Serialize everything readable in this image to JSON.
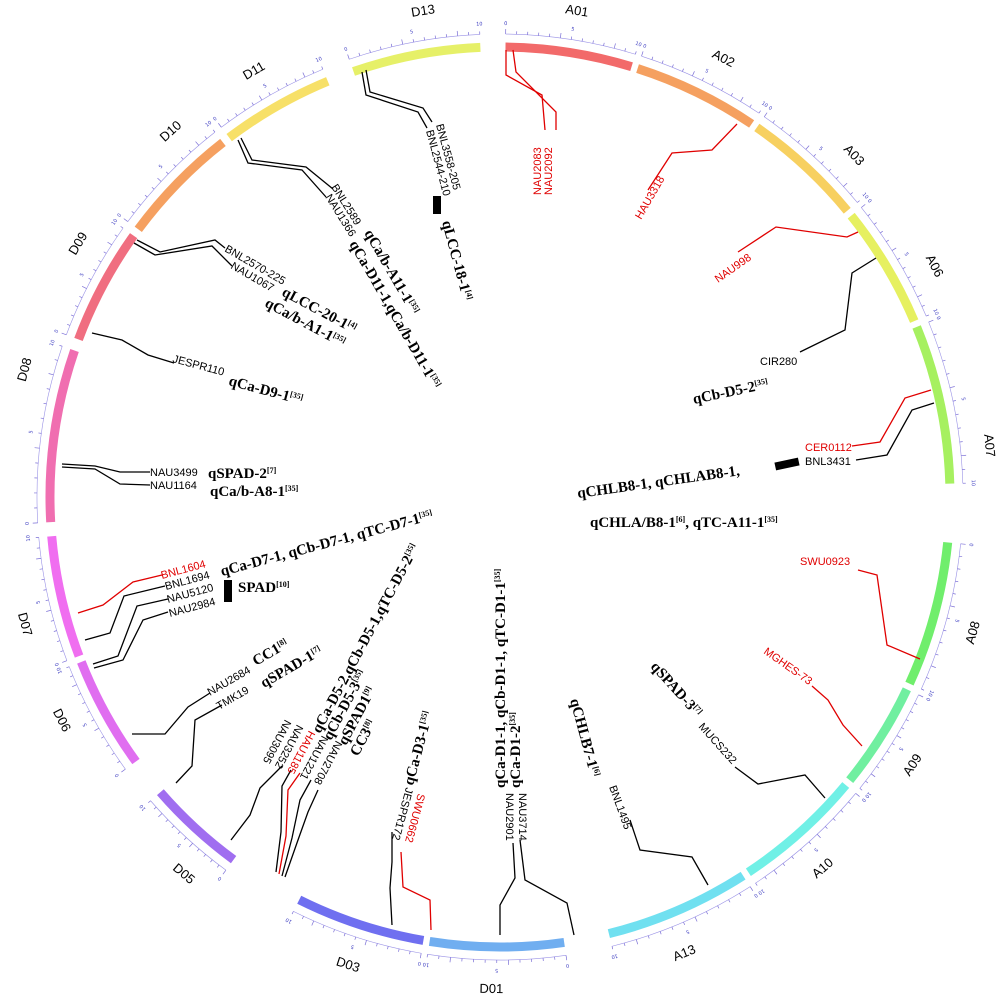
{
  "chromosomes": [
    {
      "id": "A01",
      "color": "#f26a6a",
      "ticks": [
        0,
        5,
        10
      ]
    },
    {
      "id": "A02",
      "color": "#f5a060",
      "ticks": [
        0,
        5,
        10
      ]
    },
    {
      "id": "A03",
      "color": "#f7d060",
      "ticks": [
        0,
        5,
        10
      ]
    },
    {
      "id": "A06",
      "color": "#e6f060",
      "ticks": [
        0,
        5,
        10
      ]
    },
    {
      "id": "A07",
      "color": "#a6f060",
      "ticks": [
        0,
        5,
        10
      ]
    },
    {
      "id": "A08",
      "color": "#70ee6c",
      "ticks": [
        0,
        5,
        10
      ]
    },
    {
      "id": "A09",
      "color": "#70efa0",
      "ticks": [
        0,
        5,
        10
      ]
    },
    {
      "id": "A10",
      "color": "#70f0e6",
      "ticks": [
        0,
        5,
        10
      ]
    },
    {
      "id": "A13",
      "color": "#70e0f0",
      "ticks": [
        0,
        5,
        10
      ]
    },
    {
      "id": "D01",
      "color": "#70aef0",
      "ticks": [
        0,
        5,
        10
      ]
    },
    {
      "id": "D03",
      "color": "#6f6ff0",
      "ticks": [
        0,
        5,
        10
      ]
    },
    {
      "id": "D05",
      "color": "#a06ef0",
      "ticks": [
        0,
        5,
        10
      ]
    },
    {
      "id": "D06",
      "color": "#e06ef0",
      "ticks": [
        0,
        5,
        10
      ]
    },
    {
      "id": "D07",
      "color": "#f06ef0",
      "ticks": [
        0,
        5,
        10
      ]
    },
    {
      "id": "D08",
      "color": "#f06eb0",
      "ticks": [
        0,
        5,
        10
      ]
    },
    {
      "id": "D09",
      "color": "#f06e80",
      "ticks": [
        0,
        5,
        10
      ]
    },
    {
      "id": "D10",
      "color": "#f5a060",
      "ticks": [
        0,
        5,
        10
      ]
    },
    {
      "id": "D11",
      "color": "#f7e068",
      "ticks": [
        0,
        5,
        10
      ]
    },
    {
      "id": "D13",
      "color": "#e6f068",
      "ticks": [
        0,
        5,
        10
      ]
    }
  ],
  "markers": [
    {
      "id": "NAU2083",
      "color": "#e00000"
    },
    {
      "id": "NAU2092",
      "color": "#e00000"
    },
    {
      "id": "HAU3318",
      "color": "#e00000"
    },
    {
      "id": "NAU998",
      "color": "#e00000"
    },
    {
      "id": "CIR280",
      "color": "#000000"
    },
    {
      "id": "CER0112",
      "color": "#e00000"
    },
    {
      "id": "BNL3431",
      "color": "#000000"
    },
    {
      "id": "SWU0923",
      "color": "#e00000"
    },
    {
      "id": "MGHES-73",
      "color": "#e00000"
    },
    {
      "id": "MUCS232",
      "color": "#000000"
    },
    {
      "id": "BNL1495",
      "color": "#000000"
    },
    {
      "id": "NAU3714",
      "color": "#000000"
    },
    {
      "id": "NAU2901",
      "color": "#000000"
    },
    {
      "id": "SWU0662",
      "color": "#e00000"
    },
    {
      "id": "JESPR172",
      "color": "#000000"
    },
    {
      "id": "NAU2708",
      "color": "#000000"
    },
    {
      "id": "NAU1221",
      "color": "#000000"
    },
    {
      "id": "HAU1185",
      "color": "#e00000"
    },
    {
      "id": "NAU3252",
      "color": "#000000"
    },
    {
      "id": "NAU3095",
      "color": "#000000"
    },
    {
      "id": "TMK19",
      "color": "#000000"
    },
    {
      "id": "NAU2684",
      "color": "#000000"
    },
    {
      "id": "NAU2984",
      "color": "#000000"
    },
    {
      "id": "NAU5120",
      "color": "#000000"
    },
    {
      "id": "BNL1694",
      "color": "#000000"
    },
    {
      "id": "BNL1604",
      "color": "#e00000"
    },
    {
      "id": "NAU1164",
      "color": "#000000"
    },
    {
      "id": "NAU3499",
      "color": "#000000"
    },
    {
      "id": "JESPR110",
      "color": "#000000"
    },
    {
      "id": "NAU1067",
      "color": "#000000"
    },
    {
      "id": "BNL2570-225",
      "color": "#000000"
    },
    {
      "id": "NAU1366",
      "color": "#000000"
    },
    {
      "id": "BNL2589",
      "color": "#000000"
    },
    {
      "id": "BNL2544-210",
      "color": "#000000"
    },
    {
      "id": "BNL3558-205",
      "color": "#000000"
    }
  ],
  "qtls": [
    {
      "name": "qLCC-18-1",
      "ref": "[4]"
    },
    {
      "name": "qCa/b-A11-1",
      "ref": "[35]"
    },
    {
      "name": "qCa-D11-1,qCa/b-D11-1",
      "ref": "[35]"
    },
    {
      "name": "qLCC-20-1",
      "ref": "[4]"
    },
    {
      "name": "qCa/b-A1-1",
      "ref": "[35]"
    },
    {
      "name": "qCa-D9-1",
      "ref": "[35]"
    },
    {
      "name": "qSPAD-2",
      "ref": "[7]"
    },
    {
      "name": "qCa/b-A8-1",
      "ref": "[35]"
    },
    {
      "name": "qCa-D7-1, qCb-D7-1, qTC-D7-1",
      "ref": "[35]"
    },
    {
      "name": "SPAD",
      "ref": "[10]"
    },
    {
      "name": "CC1",
      "ref": "[8]"
    },
    {
      "name": "qSPAD-1",
      "ref": "[7]"
    },
    {
      "name": "qCa-D5-2,qCb-D5-1,qTC-D5-2",
      "ref": "[35]"
    },
    {
      "name": "qCb-D5-3",
      "ref": "[35]"
    },
    {
      "name": "qSPAD1",
      "ref": "[9]"
    },
    {
      "name": "CC3",
      "ref": "[8]"
    },
    {
      "name": "qCa-D3-1",
      "ref": "[35]"
    },
    {
      "name": "qCa-D1-1, qCb-D1-1, qTC-D1-1",
      "ref": "[35]"
    },
    {
      "name": "qCa-D1-2",
      "ref": "[35]"
    },
    {
      "name": "qCHLB7-1",
      "ref": "[6]"
    },
    {
      "name": "qSPAD-3",
      "ref": "[7]"
    },
    {
      "name": "qCb-D5-2",
      "ref": "[35]"
    },
    {
      "name": "qCHLB8-1, qCHLAB8-1,",
      "ref": ""
    },
    {
      "name": "qCHLA/B8-1",
      "ref": "[6]"
    },
    {
      "name": ", qTC-A11-1",
      "ref": "[35]"
    }
  ]
}
